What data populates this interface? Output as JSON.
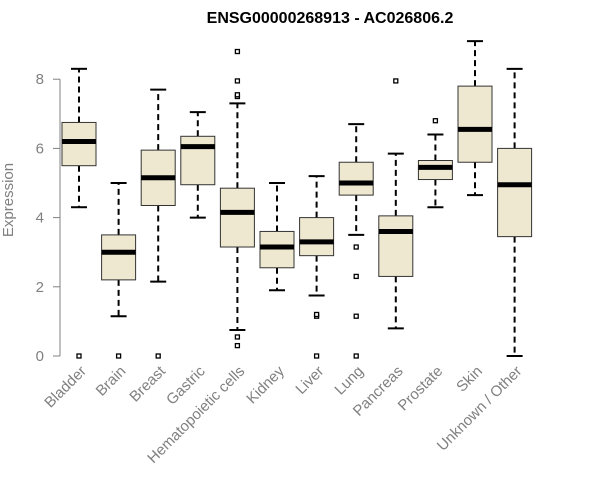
{
  "chart_data": {
    "type": "box",
    "title": "ENSG00000268913 - AC026806.2",
    "xlabel": "",
    "ylabel": "Expression",
    "ylim": [
      0,
      9
    ],
    "yticks": [
      0,
      2,
      4,
      6,
      8
    ],
    "grid": false,
    "legend": "none",
    "box_fill": "#efe8d0",
    "box_stroke": "#333333",
    "median_color": "#000000",
    "axis_color": "#808080",
    "categories": [
      "Bladder",
      "Brain",
      "Breast",
      "Gastric",
      "Hematopoietic cells",
      "Kidney",
      "Liver",
      "Lung",
      "Pancreas",
      "Prostate",
      "Skin",
      "Unknown / Other"
    ],
    "boxes": [
      {
        "category": "Bladder",
        "min": 4.3,
        "q1": 5.5,
        "median": 6.2,
        "q3": 6.75,
        "max": 8.3,
        "outliers": [
          0
        ]
      },
      {
        "category": "Brain",
        "min": 1.15,
        "q1": 2.2,
        "median": 3.0,
        "q3": 3.5,
        "max": 5.0,
        "outliers": [
          0
        ]
      },
      {
        "category": "Breast",
        "min": 2.15,
        "q1": 4.35,
        "median": 5.15,
        "q3": 5.95,
        "max": 7.7,
        "outliers": [
          0
        ]
      },
      {
        "category": "Gastric",
        "min": 4.0,
        "q1": 4.95,
        "median": 6.05,
        "q3": 6.35,
        "max": 7.05,
        "outliers": []
      },
      {
        "category": "Hematopoietic cells",
        "min": 0.75,
        "q1": 3.15,
        "median": 4.15,
        "q3": 4.85,
        "max": 7.3,
        "outliers": [
          0.3,
          0.55,
          7.5,
          7.55,
          7.95,
          8.8
        ]
      },
      {
        "category": "Kidney",
        "min": 1.9,
        "q1": 2.55,
        "median": 3.15,
        "q3": 3.6,
        "max": 5.0,
        "outliers": []
      },
      {
        "category": "Liver",
        "min": 1.75,
        "q1": 2.9,
        "median": 3.3,
        "q3": 4.0,
        "max": 5.2,
        "outliers": [
          0,
          1.15,
          1.2
        ]
      },
      {
        "category": "Lung",
        "min": 3.5,
        "q1": 4.65,
        "median": 5.0,
        "q3": 5.6,
        "max": 6.7,
        "outliers": [
          0,
          1.15,
          2.3,
          3.15
        ]
      },
      {
        "category": "Pancreas",
        "min": 0.8,
        "q1": 2.3,
        "median": 3.6,
        "q3": 4.05,
        "max": 5.85,
        "outliers": [
          7.95
        ]
      },
      {
        "category": "Prostate",
        "min": 4.3,
        "q1": 5.1,
        "median": 5.45,
        "q3": 5.65,
        "max": 6.4,
        "outliers": [
          6.8
        ]
      },
      {
        "category": "Skin",
        "min": 4.65,
        "q1": 5.6,
        "median": 6.55,
        "q3": 7.8,
        "max": 9.1,
        "outliers": []
      },
      {
        "category": "Unknown / Other",
        "min": 0,
        "q1": 3.45,
        "median": 4.95,
        "q3": 6.0,
        "max": 8.3,
        "outliers": []
      }
    ]
  }
}
